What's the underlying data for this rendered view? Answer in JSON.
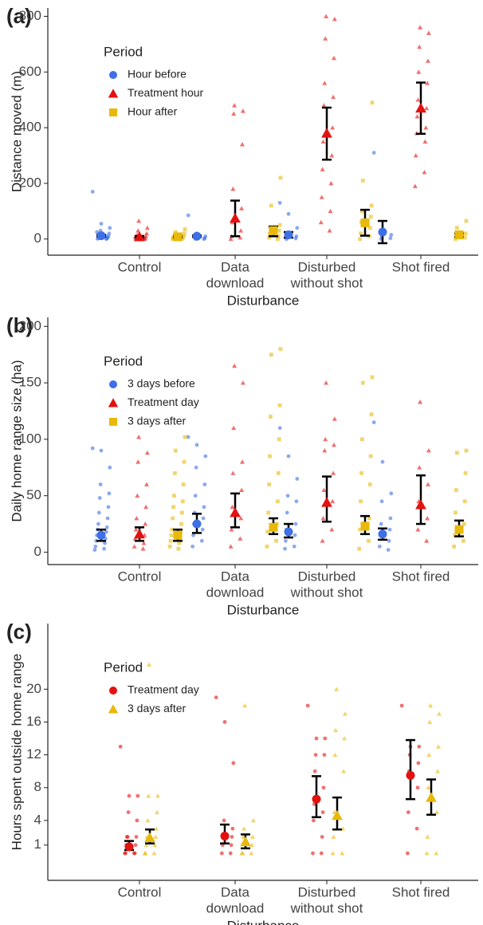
{
  "chart_data": [
    {
      "type": "dot",
      "tag": "(a)",
      "y_label": "Distance moved (m)",
      "x_label": "Disturbance",
      "categories": [
        [
          "Control"
        ],
        [
          "Data",
          "download"
        ],
        [
          "Disturbed",
          "without shot"
        ],
        [
          "Shot fired"
        ]
      ],
      "ylim": [
        -58,
        830
      ],
      "yticks": [
        0,
        200,
        400,
        600,
        800
      ],
      "legend_title": "Period",
      "legend_position": "top-left",
      "series": [
        {
          "name": "Hour before",
          "color": "#3d6fe6",
          "shape": "circle",
          "means": [
            12,
            10,
            15,
            25
          ],
          "lower": [
            9,
            7,
            5,
            -15
          ],
          "upper": [
            15,
            13,
            25,
            65
          ],
          "points": [
            [
              170,
              55,
              40,
              30,
              20,
              15,
              10,
              8,
              5,
              3,
              2,
              1,
              0,
              25,
              12
            ],
            [
              85,
              20,
              10,
              5,
              3,
              1,
              0,
              8
            ],
            [
              130,
              90,
              40,
              20,
              10,
              5,
              2,
              0
            ],
            [
              310,
              30,
              15,
              8,
              3,
              0
            ]
          ]
        },
        {
          "name": "Treatment hour",
          "color": "#e3120f",
          "shape": "triangle",
          "means": [
            8,
            75,
            380,
            470
          ],
          "lower": [
            5,
            10,
            285,
            378
          ],
          "upper": [
            11,
            138,
            472,
            562
          ],
          "points": [
            [
              65,
              40,
              30,
              20,
              15,
              10,
              5,
              3,
              2,
              0,
              8
            ],
            [
              480,
              460,
              450,
              340,
              180,
              110,
              60,
              30,
              10,
              5,
              0
            ],
            [
              800,
              790,
              720,
              650,
              560,
              510,
              480,
              400,
              350,
              300,
              250,
              200,
              150,
              100,
              60,
              30
            ],
            [
              760,
              740,
              690,
              640,
              600,
              560,
              500,
              470,
              440,
              400,
              380,
              350,
              300,
              240,
              190
            ]
          ]
        },
        {
          "name": "Hour after",
          "color": "#e8b90a",
          "shape": "square",
          "means": [
            8,
            30,
            58,
            15
          ],
          "lower": [
            5,
            10,
            12,
            8
          ],
          "upper": [
            11,
            45,
            105,
            20
          ],
          "points": [
            [
              35,
              25,
              20,
              15,
              10,
              8,
              5,
              3,
              1,
              0
            ],
            [
              220,
              120,
              50,
              40,
              30,
              20,
              10,
              5,
              0
            ],
            [
              490,
              210,
              120,
              100,
              80,
              60,
              40,
              20,
              10,
              0
            ],
            [
              65,
              40,
              20,
              10,
              5,
              0
            ]
          ]
        }
      ]
    },
    {
      "type": "dot",
      "tag": "(b)",
      "y_label": "Daily home range size (ha)",
      "x_label": "Disturbance",
      "categories": [
        [
          "Control"
        ],
        [
          "Data",
          "download"
        ],
        [
          "Disturbed",
          "without shot"
        ],
        [
          "Shot fired"
        ]
      ],
      "ylim": [
        -11,
        208
      ],
      "yticks": [
        0,
        50,
        100,
        150,
        200
      ],
      "legend_title": "Period",
      "legend_position": "top-left",
      "series": [
        {
          "name": "3 days before",
          "color": "#3d6fe6",
          "shape": "circle",
          "means": [
            15,
            25,
            18,
            16
          ],
          "lower": [
            10,
            17,
            13,
            11
          ],
          "upper": [
            20,
            34,
            25,
            21
          ],
          "points": [
            [
              92,
              90,
              75,
              60,
              52,
              48,
              40,
              35,
              30,
              25,
              22,
              20,
              18,
              15,
              12,
              10,
              8,
              5,
              3,
              2
            ],
            [
              102,
              95,
              85,
              75,
              60,
              50,
              40,
              35,
              30,
              25,
              20,
              15,
              10,
              5
            ],
            [
              110,
              85,
              65,
              50,
              45,
              35,
              25,
              20,
              15,
              10,
              5,
              3
            ],
            [
              115,
              80,
              52,
              45,
              30,
              25,
              20,
              15,
              10,
              5,
              2
            ]
          ]
        },
        {
          "name": "Treatment day",
          "color": "#e3120f",
          "shape": "triangle",
          "means": [
            16,
            35,
            44,
            42
          ],
          "lower": [
            10,
            22,
            27,
            25
          ],
          "upper": [
            22,
            52,
            67,
            68
          ],
          "points": [
            [
              102,
              88,
              80,
              60,
              50,
              40,
              30,
              25,
              20,
              15,
              12,
              8,
              5,
              3
            ],
            [
              165,
              150,
              110,
              80,
              70,
              55,
              40,
              30,
              20,
              12,
              5
            ],
            [
              150,
              118,
              100,
              95,
              90,
              70,
              55,
              45,
              30,
              20,
              10
            ],
            [
              133,
              90,
              75,
              60,
              45,
              30,
              20,
              10
            ]
          ]
        },
        {
          "name": "3 days after",
          "color": "#e8b90a",
          "shape": "square",
          "means": [
            15,
            22,
            23,
            20
          ],
          "lower": [
            10,
            16,
            16,
            14
          ],
          "upper": [
            20,
            30,
            32,
            28
          ],
          "points": [
            [
              102,
              90,
              80,
              70,
              60,
              50,
              45,
              40,
              35,
              30,
              25,
              20,
              18,
              15,
              12,
              10,
              8,
              5,
              3
            ],
            [
              180,
              175,
              130,
              120,
              100,
              85,
              70,
              60,
              45,
              35,
              25,
              18,
              10,
              5
            ],
            [
              155,
              150,
              122,
              100,
              85,
              70,
              60,
              45,
              30,
              20,
              10,
              3
            ],
            [
              90,
              88,
              70,
              55,
              45,
              35,
              25,
              15,
              10,
              5
            ]
          ]
        }
      ]
    },
    {
      "type": "dot",
      "tag": "(c)",
      "y_label": "Hours spent outside home range",
      "x_label": "Disturbance",
      "categories": [
        [
          "Control"
        ],
        [
          "Data",
          "download"
        ],
        [
          "Disturbed",
          "without shot"
        ],
        [
          "Shot fired"
        ]
      ],
      "ylim": [
        -3.3,
        28
      ],
      "yticks": [
        1,
        4,
        8,
        12,
        16,
        20
      ],
      "legend_title": "Period",
      "legend_position": "top-left",
      "series": [
        {
          "name": "Treatment day",
          "color": "#e3120f",
          "shape": "circle",
          "means": [
            0.8,
            2.1,
            6.6,
            9.5
          ],
          "lower": [
            0.4,
            1.2,
            4.4,
            6.6
          ],
          "upper": [
            1.5,
            3.5,
            9.4,
            13.8
          ],
          "points": [
            [
              13,
              7,
              7,
              5,
              4,
              2,
              2,
              2,
              1,
              1,
              0,
              0,
              0,
              0
            ],
            [
              19,
              16,
              11,
              4,
              3,
              2,
              2,
              1,
              1,
              0,
              0
            ],
            [
              18,
              14,
              14,
              12,
              12,
              10,
              8,
              6,
              5,
              4,
              2,
              0,
              0
            ],
            [
              18,
              13,
              13,
              12,
              11,
              10,
              8,
              5,
              3,
              0
            ]
          ]
        },
        {
          "name": "3 days after",
          "color": "#e8b90a",
          "shape": "triangle",
          "means": [
            1.9,
            1.4,
            4.6,
            6.8
          ],
          "lower": [
            1.2,
            0.6,
            2.9,
            4.7
          ],
          "upper": [
            2.9,
            2.3,
            6.8,
            9.0
          ],
          "points": [
            [
              23,
              7,
              7,
              5,
              4,
              3,
              2,
              2,
              1,
              1,
              0,
              0,
              0
            ],
            [
              18,
              4,
              3,
              2,
              2,
              1,
              0,
              0,
              0
            ],
            [
              20,
              17,
              15,
              14,
              12,
              10,
              5,
              3,
              2,
              0,
              0
            ],
            [
              18,
              17,
              16,
              13,
              12,
              10,
              8,
              5,
              2,
              0,
              0
            ]
          ]
        }
      ]
    }
  ]
}
